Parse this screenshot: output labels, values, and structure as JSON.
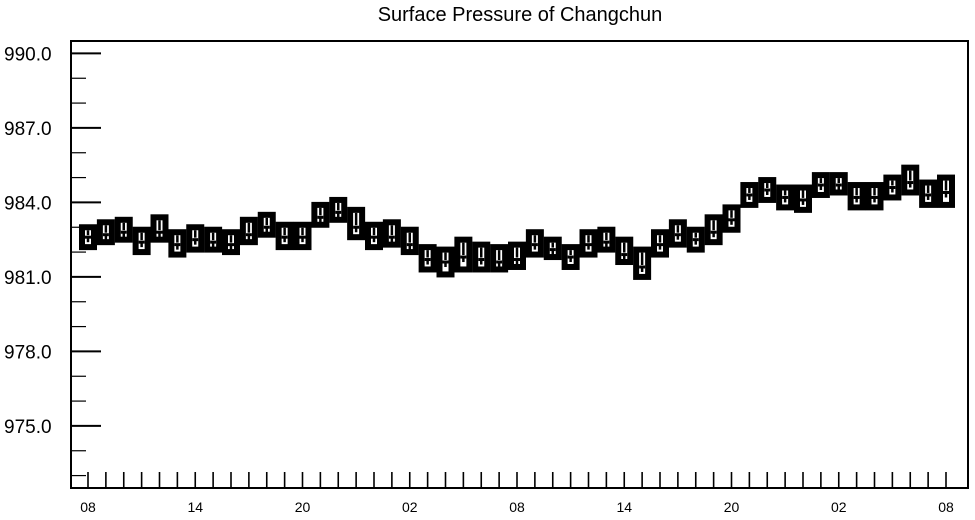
{
  "chart_data": {
    "type": "boxplot",
    "title": "Surface Pressure of Changchun",
    "xlabel": "",
    "ylabel": "",
    "ylim": [
      972.5,
      990.5
    ],
    "y_ticks": [
      "990.0",
      "987.0",
      "984.0",
      "981.0",
      "978.0",
      "975.0"
    ],
    "x_tick_labels": [
      "08",
      "14",
      "20",
      "02",
      "08",
      "14",
      "20",
      "02",
      "08"
    ],
    "grid": false,
    "legend": "none",
    "box_color": "#000000",
    "series": [
      {
        "name": "",
        "lower": [
          982.2,
          982.4,
          982.5,
          982.0,
          982.5,
          981.9,
          982.1,
          982.1,
          982.0,
          982.4,
          982.7,
          982.2,
          982.2,
          983.1,
          983.3,
          982.6,
          982.2,
          982.3,
          982.0,
          981.3,
          981.1,
          981.3,
          981.3,
          981.3,
          981.4,
          981.9,
          981.8,
          981.4,
          981.9,
          982.1,
          981.6,
          981.0,
          981.9,
          982.3,
          982.1,
          982.4,
          982.9,
          983.9,
          984.1,
          983.8,
          983.7,
          984.3,
          984.4,
          983.8,
          983.8,
          984.2,
          984.4,
          983.9,
          983.9
        ],
        "median": [
          982.6,
          982.7,
          982.8,
          982.4,
          982.8,
          982.3,
          982.5,
          982.4,
          982.3,
          982.7,
          983.0,
          982.6,
          982.6,
          983.4,
          983.6,
          983.0,
          982.6,
          982.6,
          982.3,
          981.7,
          981.6,
          981.8,
          981.7,
          981.6,
          981.7,
          982.3,
          982.1,
          981.8,
          982.3,
          982.4,
          981.9,
          981.4,
          982.3,
          982.7,
          982.5,
          982.8,
          983.3,
          984.3,
          984.5,
          984.2,
          984.1,
          984.7,
          984.7,
          984.2,
          984.2,
          984.6,
          984.8,
          984.3,
          984.4
        ],
        "upper": [
          983.0,
          983.2,
          983.3,
          982.9,
          983.4,
          982.8,
          983.0,
          982.9,
          982.8,
          983.3,
          983.5,
          983.1,
          983.1,
          983.9,
          984.1,
          983.7,
          983.1,
          983.2,
          982.9,
          982.2,
          982.1,
          982.5,
          982.3,
          982.2,
          982.3,
          982.8,
          982.5,
          982.2,
          982.8,
          982.9,
          982.5,
          982.1,
          982.8,
          983.2,
          982.9,
          983.4,
          983.8,
          984.7,
          984.9,
          984.6,
          984.6,
          985.1,
          985.1,
          984.7,
          984.7,
          985.0,
          985.4,
          984.8,
          985.0
        ]
      }
    ]
  }
}
